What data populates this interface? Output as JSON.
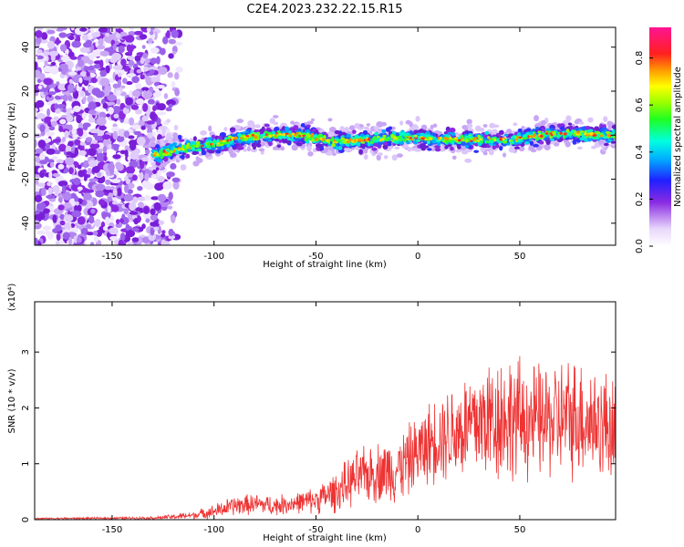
{
  "title": "C2E4.2023.232.22.15.R15",
  "chart_data": [
    {
      "type": "heatmap",
      "xlabel": "Height of straight line (km)",
      "ylabel": "Frequency (Hz)",
      "xlim": [
        -188,
        97
      ],
      "ylim": [
        -50,
        49
      ],
      "x_ticks": [
        -150,
        -100,
        -50,
        0,
        50
      ],
      "y_ticks": [
        -40,
        -20,
        0,
        20,
        40
      ],
      "colorbar": {
        "label": "Normalized spectral amplitude",
        "range": [
          0,
          0.93
        ],
        "ticks": [
          0.0,
          0.2,
          0.4,
          0.6,
          0.8
        ]
      },
      "noise_region_x": [
        -188,
        -125
      ],
      "signal_ridge": {
        "x": [
          -130,
          -115,
          -100,
          -85,
          -70,
          -55,
          -40,
          -25,
          -10,
          0,
          15,
          30,
          45,
          60,
          75,
          90,
          97
        ],
        "freq": [
          -9,
          -6,
          -4,
          -1,
          0,
          0,
          -3,
          -2,
          -1,
          -1,
          -2,
          -2,
          -2,
          0,
          1,
          0,
          0
        ]
      }
    },
    {
      "type": "line",
      "xlabel": "Height of straight line (km)",
      "ylabel": "SNR (10 * v/v)",
      "y_multiplier": "(x10⁴)",
      "xlim": [
        -188,
        97
      ],
      "ylim": [
        0,
        3.9
      ],
      "x_ticks": [
        -150,
        -100,
        -50,
        0,
        50
      ],
      "y_ticks": [
        0,
        1,
        2,
        3
      ],
      "color": "#ee3333",
      "envelope": {
        "x": [
          -188,
          -130,
          -120,
          -110,
          -100,
          -90,
          -80,
          -70,
          -60,
          -50,
          -40,
          -30,
          -20,
          -10,
          0,
          10,
          20,
          30,
          40,
          50,
          60,
          70,
          80,
          90,
          97
        ],
        "mean": [
          0.02,
          0.03,
          0.05,
          0.08,
          0.15,
          0.25,
          0.28,
          0.25,
          0.3,
          0.35,
          0.5,
          0.75,
          0.85,
          0.9,
          1.2,
          1.5,
          1.6,
          1.75,
          1.85,
          1.8,
          1.75,
          1.8,
          1.85,
          1.7,
          1.7
        ],
        "spread": [
          0.01,
          0.02,
          0.04,
          0.06,
          0.1,
          0.15,
          0.15,
          0.15,
          0.15,
          0.2,
          0.3,
          0.4,
          0.45,
          0.5,
          0.55,
          0.65,
          0.8,
          0.9,
          1.0,
          0.9,
          0.85,
          0.9,
          0.9,
          0.85,
          0.8
        ]
      }
    }
  ]
}
